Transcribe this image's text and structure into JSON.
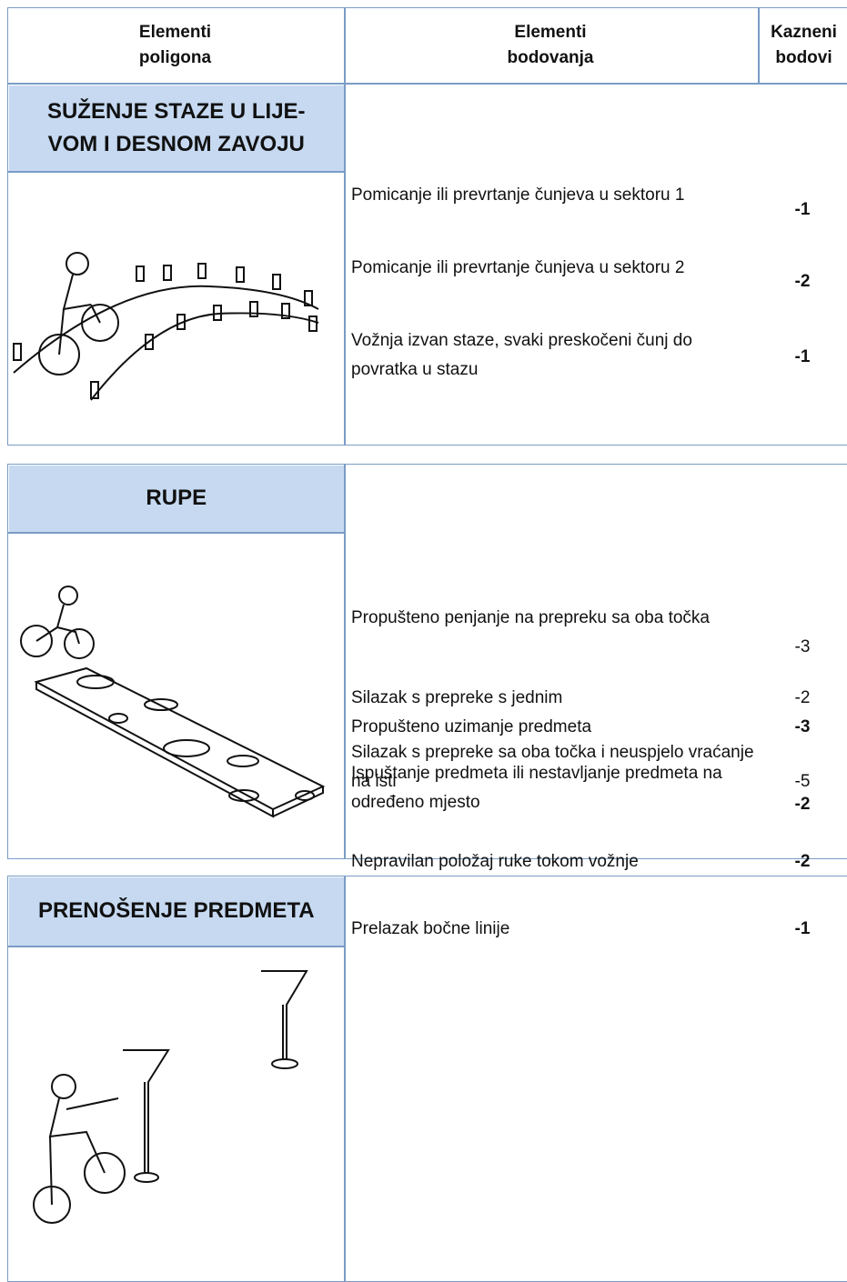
{
  "header": {
    "col1": "Elementi poligona",
    "col2": "Elementi bodovanja",
    "col3": "Kazneni bodovi"
  },
  "sections": [
    {
      "title": "SUŽENJE STAZE U LIJE-VOM I DESNOM ZAVOJU",
      "items": [
        {
          "text": "Pomicanje ili prevrtanje čunjeva u sektoru 1",
          "penalty": "-1"
        },
        {
          "text": "Pomicanje ili prevrtanje čunjeva u sektoru 2",
          "penalty": "-2"
        },
        {
          "text": "Vožnja izvan staze, svaki preskočeni čunj do povratka u stazu",
          "penalty": "-1"
        }
      ]
    },
    {
      "title": "RUPE",
      "items": [
        {
          "text": "Propušteno penjanje na prepreku sa oba točka",
          "penalty": "-3"
        },
        {
          "text": "Silazak s prepreke s jednim",
          "penalty": "-2"
        },
        {
          "text": "Silazak s prepreke sa oba točka i neuspjelo vraćanje na isti",
          "penalty": "-5"
        }
      ]
    },
    {
      "title": "PRENOŠENJE PREDMETA",
      "items": [
        {
          "text": "Propušteno uzimanje predmeta",
          "penalty": "-3"
        },
        {
          "text": "Ispuštanje predmeta ili nestavljanje predmeta na određeno mjesto",
          "penalty": "-2"
        },
        {
          "text": "Nepravilan položaj ruke tokom vožnje",
          "penalty": "-2"
        },
        {
          "text": "Prelazak bočne linije",
          "penalty": "-1"
        }
      ]
    }
  ]
}
